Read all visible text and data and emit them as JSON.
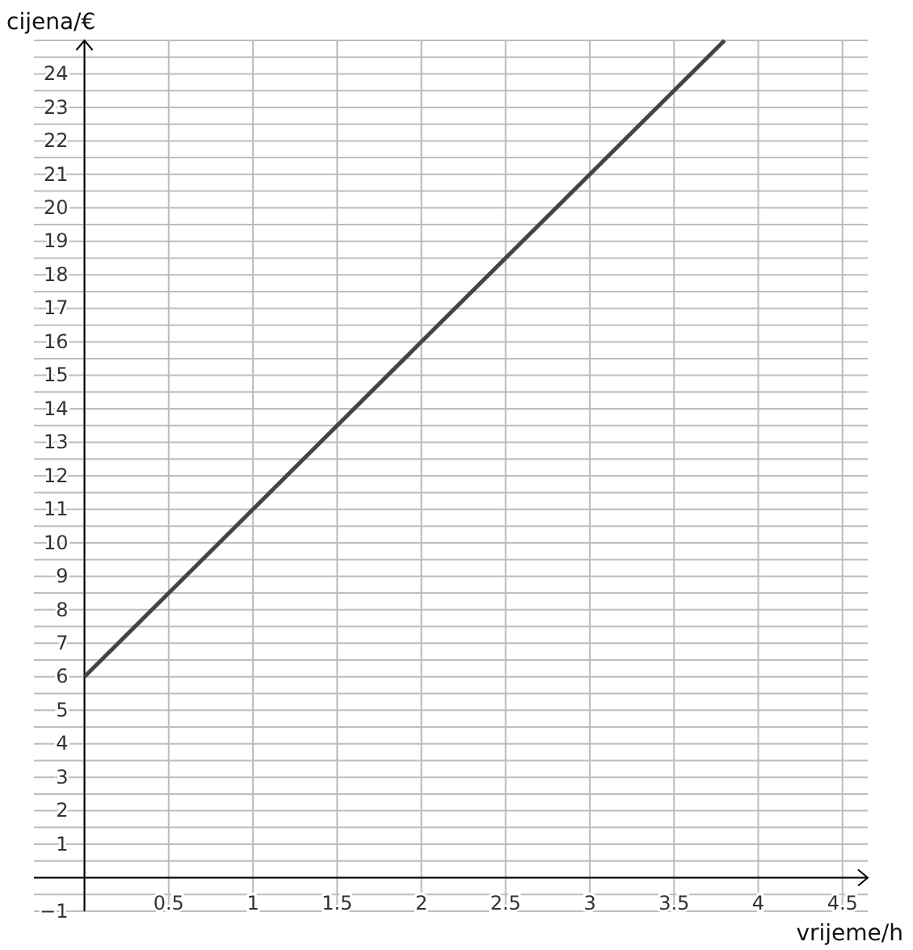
{
  "chart_data": {
    "type": "line",
    "xlabel": "vrijeme/h",
    "ylabel": "cijena/€",
    "x": [
      0,
      3.8
    ],
    "values": [
      6,
      25
    ],
    "color": "#444444",
    "marker": "none",
    "line_style": "solid",
    "grid": true,
    "xlim": [
      -0.3,
      4.65
    ],
    "ylim": [
      -1,
      25
    ],
    "xticks": [
      {
        "value": 0,
        "label": null
      },
      0.5,
      1,
      1.5,
      2,
      2.5,
      3,
      3.5,
      4,
      4.5
    ],
    "yticks": [
      {
        "value": -1,
        "label": "−1"
      },
      {
        "value": -0.5,
        "label": null
      },
      {
        "value": 0,
        "label": null
      },
      {
        "value": 0.5,
        "label": null
      },
      1,
      {
        "value": 1.5,
        "label": null
      },
      2,
      {
        "value": 2.5,
        "label": null
      },
      3,
      {
        "value": 3.5,
        "label": null
      },
      4,
      {
        "value": 4.5,
        "label": null
      },
      5,
      {
        "value": 5.5,
        "label": null
      },
      6,
      {
        "value": 6.5,
        "label": null
      },
      7,
      {
        "value": 7.5,
        "label": null
      },
      8,
      {
        "value": 8.5,
        "label": null
      },
      9,
      {
        "value": 9.5,
        "label": null
      },
      10,
      {
        "value": 10.5,
        "label": null
      },
      11,
      {
        "value": 11.5,
        "label": null
      },
      12,
      {
        "value": 12.5,
        "label": null
      },
      13,
      {
        "value": 13.5,
        "label": null
      },
      14,
      {
        "value": 14.5,
        "label": null
      },
      15,
      {
        "value": 15.5,
        "label": null
      },
      16,
      {
        "value": 16.5,
        "label": null
      },
      17,
      {
        "value": 17.5,
        "label": null
      },
      18,
      {
        "value": 18.5,
        "label": null
      },
      19,
      {
        "value": 19.5,
        "label": null
      },
      20,
      {
        "value": 20.5,
        "label": null
      },
      21,
      {
        "value": 21.5,
        "label": null
      },
      22,
      {
        "value": 22.5,
        "label": null
      },
      23,
      {
        "value": 23.5,
        "label": null
      },
      24,
      {
        "value": 24.5,
        "label": null
      },
      {
        "value": 25,
        "label": null
      }
    ]
  }
}
